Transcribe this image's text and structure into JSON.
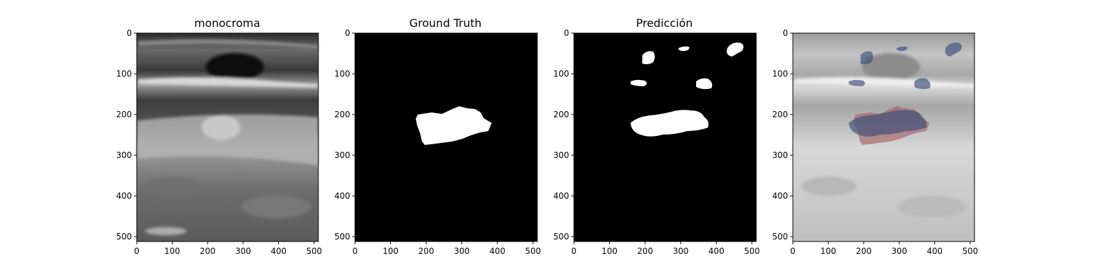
{
  "figure": {
    "panels": [
      {
        "id": "monocroma",
        "title": "monocroma",
        "kind": "ultrasound"
      },
      {
        "id": "ground-truth",
        "title": "Ground Truth",
        "kind": "mask-gt"
      },
      {
        "id": "prediccion",
        "title": "Predicción",
        "kind": "mask-pred"
      },
      {
        "id": "overlay",
        "title": "",
        "kind": "overlay"
      }
    ],
    "x_ticks": [
      "0",
      "100",
      "200",
      "300",
      "400",
      "500"
    ],
    "y_ticks": [
      "0",
      "100",
      "200",
      "300",
      "400",
      "500"
    ],
    "colors": {
      "mask_background": "#000000",
      "mask_foreground": "#ffffff",
      "overlay_ground_truth": "#a05a60",
      "overlay_prediction": "#3a4f78"
    }
  }
}
